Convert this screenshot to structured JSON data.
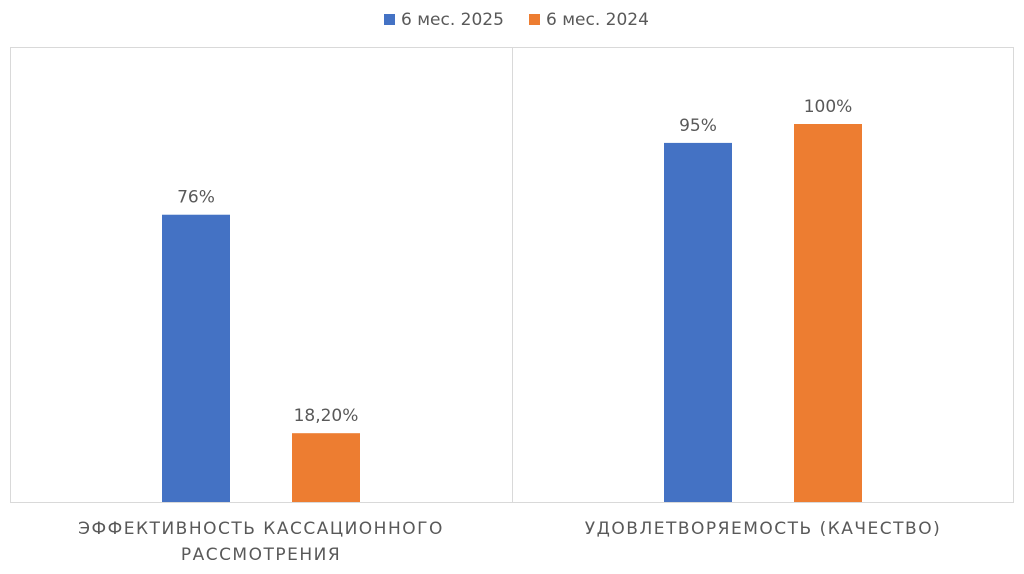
{
  "chart_data": {
    "type": "bar",
    "categories": [
      "ЭФФЕКТИВНОСТЬ КАССАЦИОННОГО РАССМОТРЕНИЯ",
      "УДОВЛЕТВОРЯЕМОСТЬ (КАЧЕСТВО)"
    ],
    "series": [
      {
        "name": "6 мес. 2025",
        "color": "#4472c4",
        "values": [
          76,
          95
        ],
        "value_labels": [
          "76%",
          "95%"
        ]
      },
      {
        "name": "6 мес. 2024",
        "color": "#ed7d31",
        "values": [
          18.2,
          100
        ],
        "value_labels": [
          "18,20%",
          "100%"
        ]
      }
    ],
    "legend": "top"
  }
}
